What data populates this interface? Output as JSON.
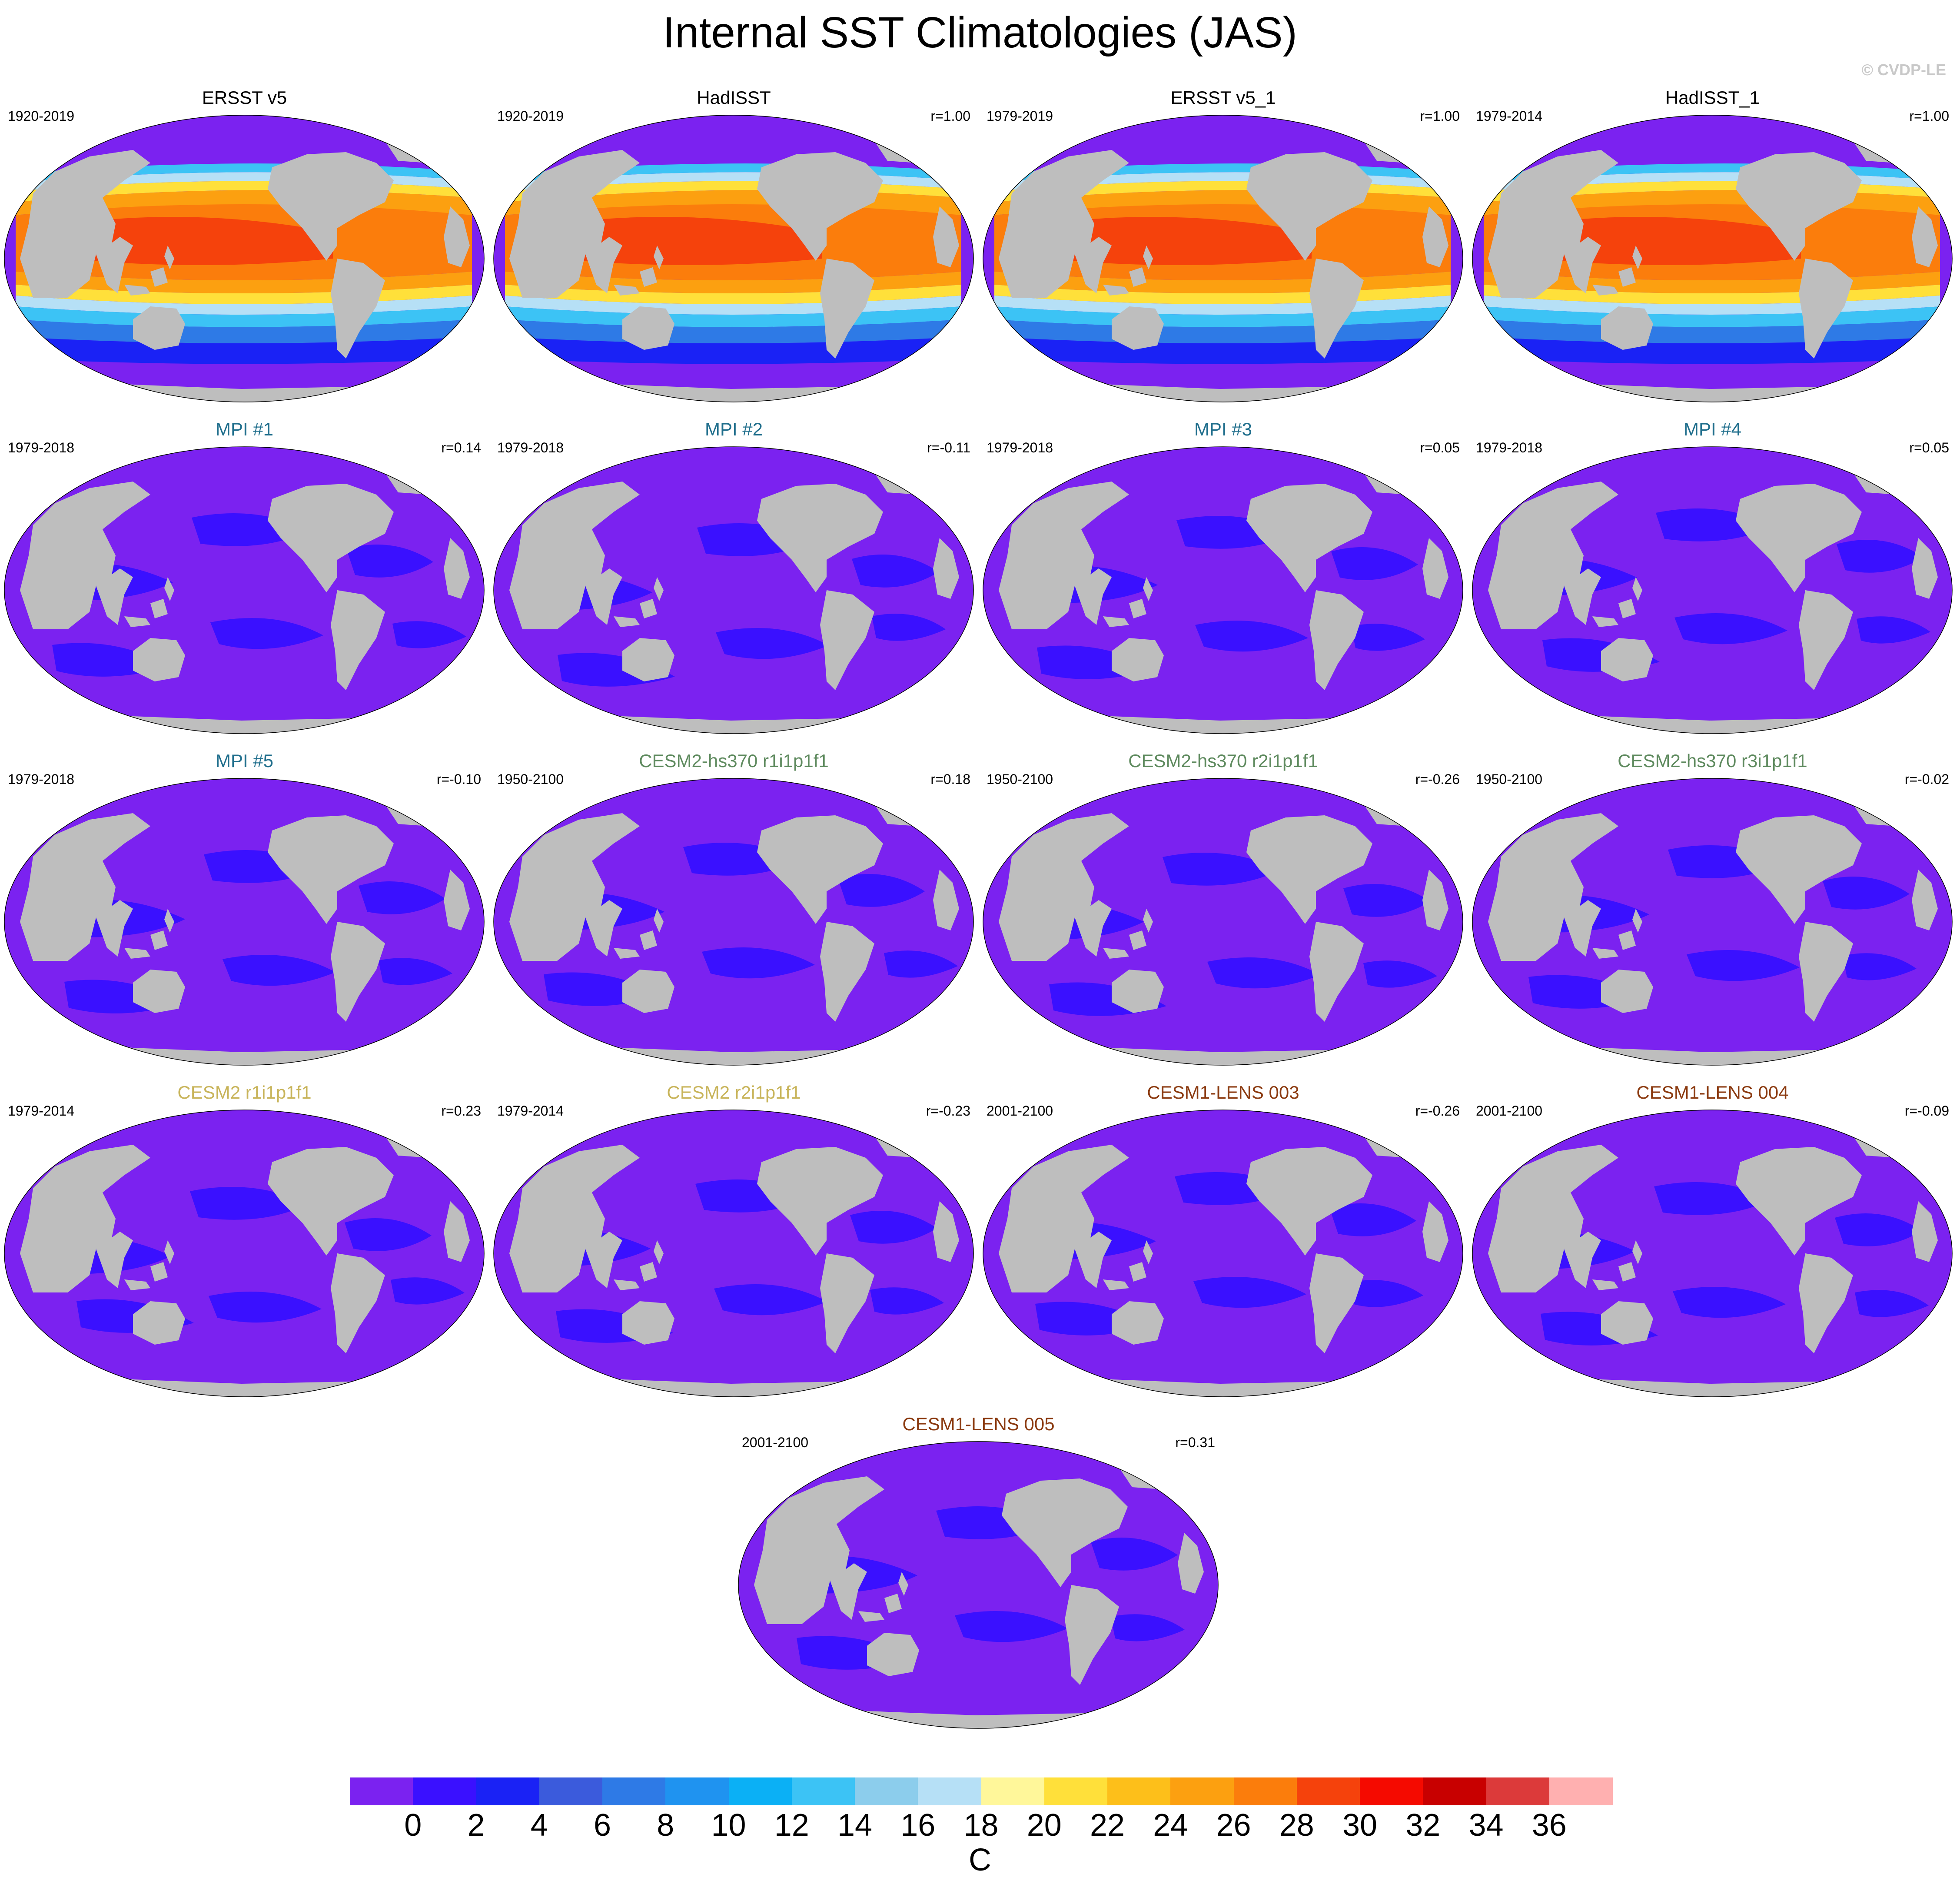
{
  "title": "Internal SST Climatologies (JAS)",
  "credit": "© CVDP-LE",
  "panels": [
    {
      "title": "ERSST v5",
      "title_color": "#000000",
      "period": "1920-2019",
      "corr": "",
      "field": "obs"
    },
    {
      "title": "HadISST",
      "title_color": "#000000",
      "period": "1920-2019",
      "corr": "r=1.00",
      "field": "obs"
    },
    {
      "title": "ERSST v5_1",
      "title_color": "#000000",
      "period": "1979-2019",
      "corr": "r=1.00",
      "field": "obs"
    },
    {
      "title": "HadISST_1",
      "title_color": "#000000",
      "period": "1979-2014",
      "corr": "r=1.00",
      "field": "obs"
    },
    {
      "title": "MPI #1",
      "title_color": "#1f6e8c",
      "period": "1979-2018",
      "corr": "r=0.14",
      "field": "internal"
    },
    {
      "title": "MPI #2",
      "title_color": "#1f6e8c",
      "period": "1979-2018",
      "corr": "r=-0.11",
      "field": "internal"
    },
    {
      "title": "MPI #3",
      "title_color": "#1f6e8c",
      "period": "1979-2018",
      "corr": "r=0.05",
      "field": "internal"
    },
    {
      "title": "MPI #4",
      "title_color": "#1f6e8c",
      "period": "1979-2018",
      "corr": "r=0.05",
      "field": "internal"
    },
    {
      "title": "MPI #5",
      "title_color": "#1f6e8c",
      "period": "1979-2018",
      "corr": "r=-0.10",
      "field": "internal"
    },
    {
      "title": "CESM2-hs370 r1i1p1f1",
      "title_color": "#5e8a5e",
      "period": "1950-2100",
      "corr": "r=0.18",
      "field": "internal"
    },
    {
      "title": "CESM2-hs370 r2i1p1f1",
      "title_color": "#5e8a5e",
      "period": "1950-2100",
      "corr": "r=-0.26",
      "field": "internal"
    },
    {
      "title": "CESM2-hs370 r3i1p1f1",
      "title_color": "#5e8a5e",
      "period": "1950-2100",
      "corr": "r=-0.02",
      "field": "internal"
    },
    {
      "title": "CESM2 r1i1p1f1",
      "title_color": "#c8b45a",
      "period": "1979-2014",
      "corr": "r=0.23",
      "field": "internal"
    },
    {
      "title": "CESM2 r2i1p1f1",
      "title_color": "#c8b45a",
      "period": "1979-2014",
      "corr": "r=-0.23",
      "field": "internal"
    },
    {
      "title": "CESM1-LENS 003",
      "title_color": "#8b3a10",
      "period": "2001-2100",
      "corr": "r=-0.26",
      "field": "internal"
    },
    {
      "title": "CESM1-LENS 004",
      "title_color": "#8b3a10",
      "period": "2001-2100",
      "corr": "r=-0.09",
      "field": "internal"
    },
    {
      "title": "CESM1-LENS 005",
      "title_color": "#8b3a10",
      "period": "2001-2100",
      "corr": "r=0.31",
      "field": "internal"
    }
  ],
  "colorbar": {
    "units": "C",
    "ticks": [
      "0",
      "2",
      "4",
      "6",
      "8",
      "10",
      "12",
      "14",
      "16",
      "18",
      "20",
      "22",
      "24",
      "26",
      "28",
      "30",
      "32",
      "34",
      "36"
    ],
    "colors": [
      "#7b22f0",
      "#3a10ff",
      "#1a22f5",
      "#3b5bdc",
      "#2e7ae6",
      "#1f93f0",
      "#0bb0f5",
      "#3cc3f5",
      "#8ccdec",
      "#b6e0f6",
      "#fff79a",
      "#ffe03a",
      "#fdbf1a",
      "#fca010",
      "#fb7d0c",
      "#f5420c",
      "#f50a00",
      "#c80000",
      "#dc3a3a",
      "#ffb0b0"
    ]
  },
  "land_color": "#bebebe"
}
